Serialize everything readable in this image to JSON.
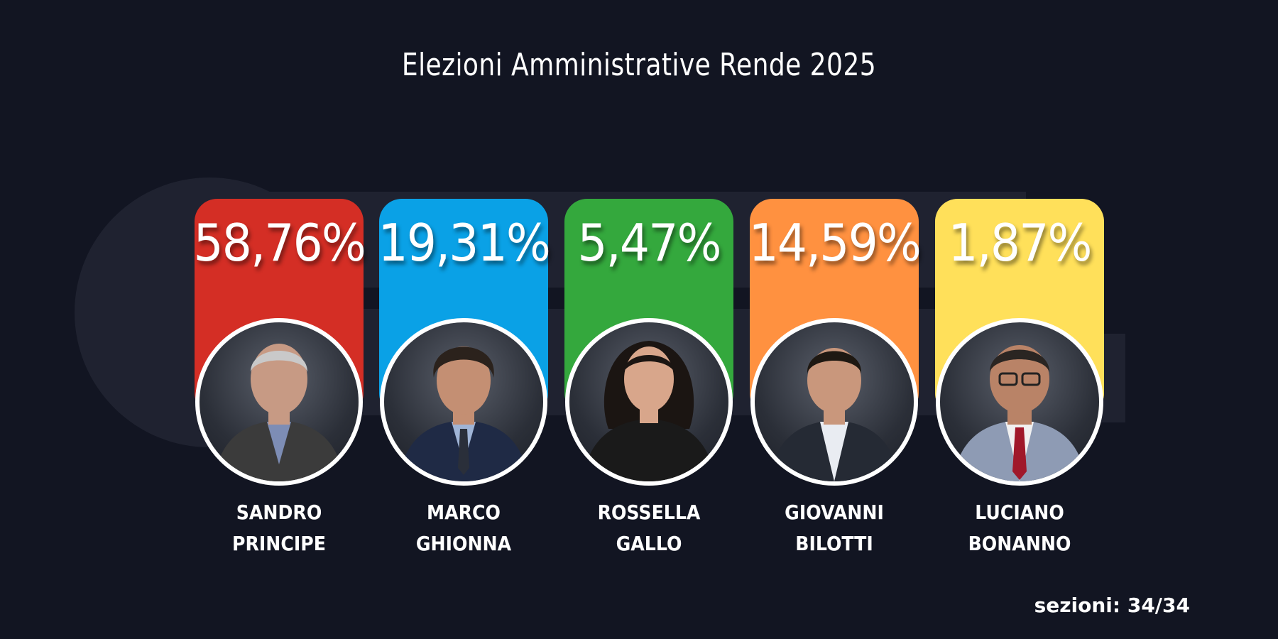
{
  "title": "Elezioni Amministrative Rende 2025",
  "sections_label": "sezioni: 34/34",
  "candidates": [
    {
      "first": "SANDRO",
      "last": "PRINCIPE",
      "percent": "58,76%",
      "color": "#d42e25",
      "hair": "#c9c9c9",
      "suit": "#3b3b3b",
      "shirt": "#7d8db5",
      "skin": "#c79a84"
    },
    {
      "first": "MARCO",
      "last": "GHIONNA",
      "percent": "19,31%",
      "color": "#0aa1e6",
      "hair": "#2b221c",
      "suit": "#1f2a45",
      "shirt": "#9fb4d6",
      "skin": "#c48f73"
    },
    {
      "first": "ROSSELLA",
      "last": "GALLO",
      "percent": "5,47%",
      "color": "#34a83d",
      "hair": "#1b1512",
      "suit": "#1a1a1a",
      "shirt": "#1a1a1a",
      "skin": "#d8a68b"
    },
    {
      "first": "GIOVANNI",
      "last": "BILOTTI",
      "percent": "14,59%",
      "color": "#ff9140",
      "hair": "#1e1812",
      "suit": "#252a34",
      "shirt": "#e9ecf2",
      "skin": "#c9977c"
    },
    {
      "first": "LUCIANO",
      "last": "BONANNO",
      "percent": "1,87%",
      "color": "#ffe05a",
      "hair": "#2a2522",
      "suit": "#8e9bb4",
      "shirt": "#f1f1f1",
      "skin": "#b98367"
    }
  ]
}
